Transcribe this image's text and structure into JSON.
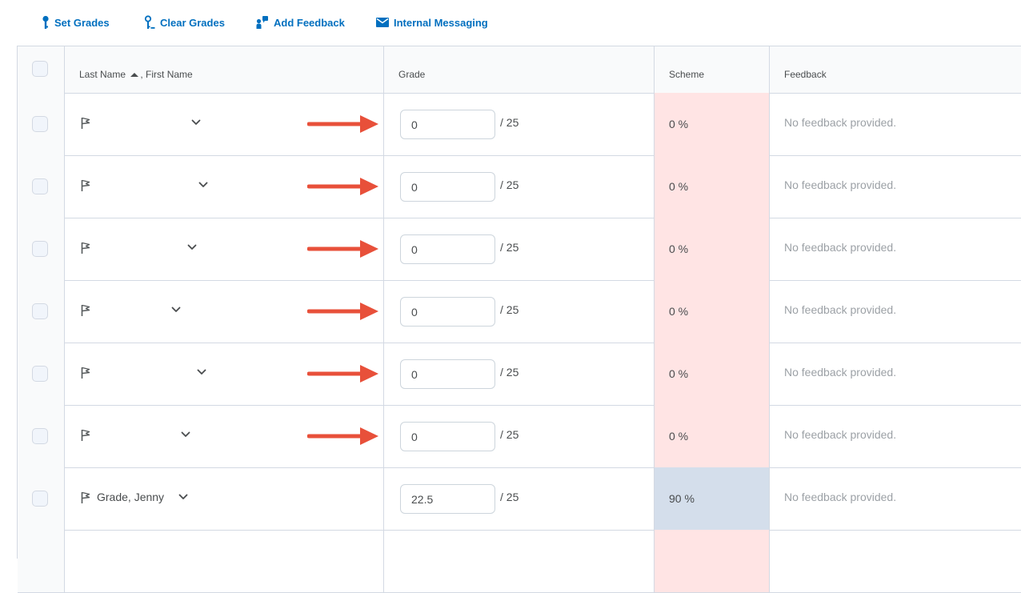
{
  "toolbar": {
    "set_grades": "Set Grades",
    "clear_grades": "Clear Grades",
    "add_feedback": "Add Feedback",
    "internal_messaging": "Internal Messaging"
  },
  "table": {
    "headers": {
      "name": "Last Name",
      "name_sort_icon": "sort-ascending-icon",
      "name_secondary": ", First Name",
      "grade": "Grade",
      "scheme": "Scheme",
      "feedback": "Feedback"
    },
    "rows": [
      {
        "name": "",
        "grade": "0",
        "out_of": "/ 25",
        "scheme": "0 %",
        "scheme_status": "fail",
        "feedback": "No feedback provided.",
        "arrow": true
      },
      {
        "name": "",
        "grade": "0",
        "out_of": "/ 25",
        "scheme": "0 %",
        "scheme_status": "fail",
        "feedback": "No feedback provided.",
        "arrow": true
      },
      {
        "name": "",
        "grade": "0",
        "out_of": "/ 25",
        "scheme": "0 %",
        "scheme_status": "fail",
        "feedback": "No feedback provided.",
        "arrow": true
      },
      {
        "name": "",
        "grade": "0",
        "out_of": "/ 25",
        "scheme": "0 %",
        "scheme_status": "fail",
        "feedback": "No feedback provided.",
        "arrow": true
      },
      {
        "name": "",
        "grade": "0",
        "out_of": "/ 25",
        "scheme": "0 %",
        "scheme_status": "fail",
        "feedback": "No feedback provided.",
        "arrow": true
      },
      {
        "name": "",
        "grade": "0",
        "out_of": "/ 25",
        "scheme": "0 %",
        "scheme_status": "fail",
        "feedback": "No feedback provided.",
        "arrow": true
      },
      {
        "name": "Grade, Jenny",
        "grade": "22.5",
        "out_of": "/ 25",
        "scheme": "90 %",
        "scheme_status": "pass",
        "feedback": "No feedback provided.",
        "arrow": false
      }
    ]
  },
  "colors": {
    "link": "#006fbf",
    "scheme_fail": "#ffe4e4",
    "scheme_pass": "#d4deeb",
    "annotation_arrow": "#e8503a"
  }
}
